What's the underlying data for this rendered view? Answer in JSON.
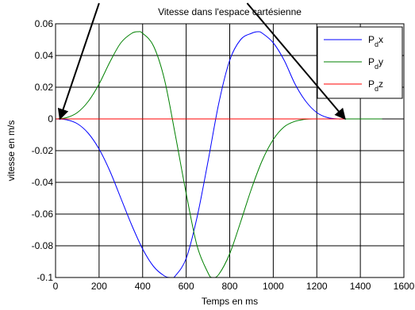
{
  "chart_data": {
    "type": "line",
    "title": "Vitesse dans l'espace cartésienne",
    "xlabel": "Temps en ms",
    "ylabel": "vitesse en m/s",
    "xlim": [
      0,
      1600
    ],
    "ylim": [
      -0.1,
      0.06
    ],
    "xticks": [
      0,
      200,
      400,
      600,
      800,
      1000,
      1200,
      1400,
      1600
    ],
    "yticks": [
      0.06,
      0.04,
      0.02,
      0,
      -0.02,
      -0.04,
      -0.06,
      -0.08,
      -0.1
    ],
    "xtick_labels": [
      "0",
      "200",
      "400",
      "600",
      "800",
      "1000",
      "1200",
      "1400",
      "1600"
    ],
    "ytick_labels": [
      "0.06",
      "0.04",
      "0.02",
      "0",
      "-0.02",
      "-0.04",
      "-0.06",
      "-0.08",
      "-0.1"
    ],
    "grid": true,
    "legend_position": "top-right",
    "series": [
      {
        "label_main": "P",
        "label_sub": "d",
        "label_suffix": "x",
        "color": "#0000ff",
        "x": [
          0,
          50,
          100,
          150,
          200,
          250,
          300,
          350,
          400,
          450,
          500,
          530,
          550,
          600,
          650,
          700,
          750,
          800,
          850,
          900,
          930,
          950,
          1000,
          1050,
          1100,
          1150,
          1200,
          1250,
          1300,
          1330,
          1500
        ],
        "y": [
          0,
          -0.0005,
          -0.003,
          -0.009,
          -0.019,
          -0.033,
          -0.05,
          -0.067,
          -0.082,
          -0.093,
          -0.099,
          -0.1,
          -0.099,
          -0.088,
          -0.062,
          -0.027,
          0.01,
          0.037,
          0.05,
          0.054,
          0.055,
          0.054,
          0.048,
          0.037,
          0.022,
          0.011,
          0.004,
          0.0008,
          0,
          0,
          0
        ]
      },
      {
        "label_main": "P",
        "label_sub": "d",
        "label_suffix": "y",
        "color": "#008000",
        "x": [
          0,
          50,
          100,
          150,
          200,
          250,
          300,
          350,
          380,
          400,
          450,
          500,
          550,
          600,
          650,
          700,
          720,
          750,
          800,
          850,
          900,
          950,
          1000,
          1050,
          1100,
          1150,
          1200,
          1300,
          1500
        ],
        "y": [
          0,
          0.0008,
          0.004,
          0.011,
          0.022,
          0.036,
          0.048,
          0.054,
          0.055,
          0.054,
          0.046,
          0.025,
          -0.01,
          -0.047,
          -0.08,
          -0.097,
          -0.1,
          -0.098,
          -0.085,
          -0.065,
          -0.044,
          -0.026,
          -0.013,
          -0.005,
          -0.0015,
          -0.0002,
          0,
          0,
          0
        ]
      },
      {
        "label_main": "P",
        "label_sub": "d",
        "label_suffix": "z",
        "color": "#ff0000",
        "x": [
          0,
          1330
        ],
        "y": [
          0,
          0
        ]
      }
    ],
    "annotations": [
      {
        "type": "arrow",
        "from": [
          200,
          0.073
        ],
        "to": [
          20,
          0
        ]
      },
      {
        "type": "arrow",
        "from": [
          880,
          0.073
        ],
        "to": [
          1330,
          0
        ]
      }
    ]
  }
}
